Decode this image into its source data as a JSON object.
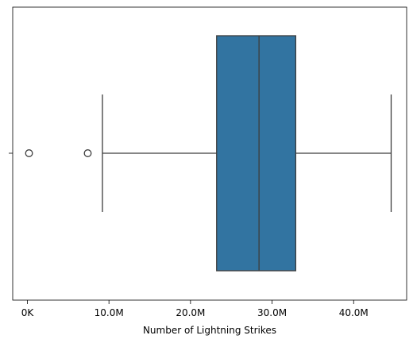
{
  "chart_data": {
    "type": "boxplot",
    "orientation": "horizontal",
    "xlabel": "Number of Lightning Strikes",
    "ylabel": "",
    "xlim": [
      -1800000,
      46500000
    ],
    "x_ticks": [
      {
        "value": 0,
        "label": "0K"
      },
      {
        "value": 10000000,
        "label": "10.0M"
      },
      {
        "value": 20000000,
        "label": "20.0M"
      },
      {
        "value": 30000000,
        "label": "30.0M"
      },
      {
        "value": 40000000,
        "label": "40.0M"
      }
    ],
    "box": {
      "whisker_low": 9200000,
      "q1": 23200000,
      "median": 28400000,
      "q3": 32900000,
      "whisker_high": 44600000
    },
    "outliers": [
      200000,
      7400000
    ],
    "grid": false,
    "box_color": "#3274a1",
    "line_color": "#3d3d3d"
  }
}
